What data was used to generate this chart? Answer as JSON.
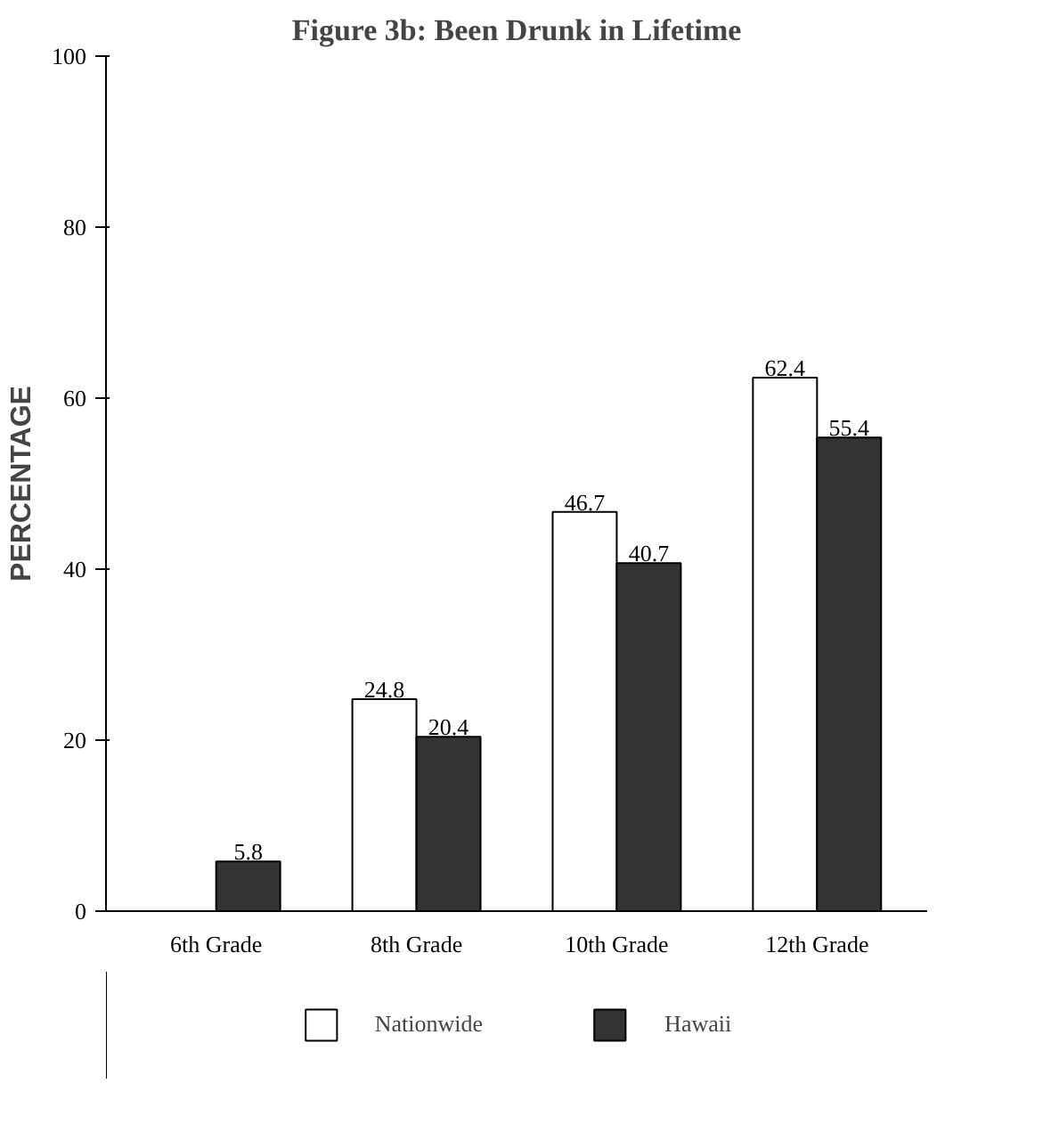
{
  "chart_data": {
    "type": "bar",
    "title": "Figure 3b: Been Drunk in Lifetime",
    "ylabel": "PERCENTAGE",
    "categories": [
      "6th Grade",
      "8th Grade",
      "10th Grade",
      "12th Grade"
    ],
    "series": [
      {
        "name": "Nationwide",
        "color": "#ffffff",
        "values": [
          null,
          24.8,
          46.7,
          62.4
        ]
      },
      {
        "name": "Hawaii",
        "color": "#333333",
        "values": [
          5.8,
          20.4,
          40.7,
          55.4
        ]
      }
    ],
    "ylim": [
      0,
      100
    ],
    "yticks": [
      0,
      20,
      40,
      60,
      80,
      100
    ],
    "grid": false,
    "legend": "bottom",
    "data_labels": true
  }
}
